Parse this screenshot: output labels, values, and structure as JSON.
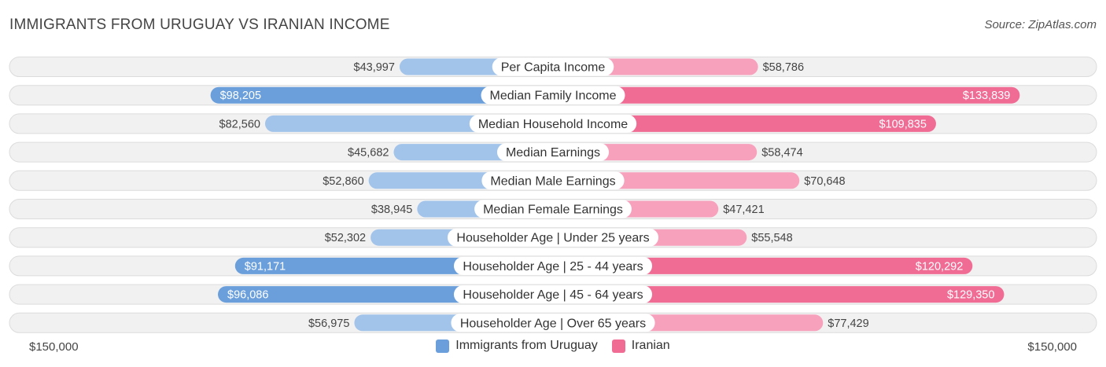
{
  "chart_data": {
    "type": "bar",
    "orientation": "horizontal-diverging",
    "title": "IMMIGRANTS FROM URUGUAY VS IRANIAN INCOME",
    "source": "Source: ZipAtlas.com",
    "categories": [
      "Per Capita Income",
      "Median Family Income",
      "Median Household Income",
      "Median Earnings",
      "Median Male Earnings",
      "Median Female Earnings",
      "Householder Age | Under 25 years",
      "Householder Age | 25 - 44 years",
      "Householder Age | 45 - 64 years",
      "Householder Age | Over 65 years"
    ],
    "series": [
      {
        "name": "Immigrants from Uruguay",
        "side": "left",
        "values": [
          43997,
          98205,
          82560,
          45682,
          52860,
          38945,
          52302,
          91171,
          96086,
          56975
        ],
        "labels": [
          "$43,997",
          "$98,205",
          "$82,560",
          "$45,682",
          "$52,860",
          "$38,945",
          "$52,302",
          "$91,171",
          "$96,086",
          "$56,975"
        ]
      },
      {
        "name": "Iranian",
        "side": "right",
        "values": [
          58786,
          133839,
          109835,
          58474,
          70648,
          47421,
          55548,
          120292,
          129350,
          77429
        ],
        "labels": [
          "$58,786",
          "$133,839",
          "$109,835",
          "$58,474",
          "$70,648",
          "$47,421",
          "$55,548",
          "$120,292",
          "$129,350",
          "$77,429"
        ]
      }
    ],
    "axis": {
      "max": 150000,
      "left_label": "$150,000",
      "right_label": "$150,000"
    },
    "colors": {
      "left_strong": "#6a9fdc",
      "left_light": "#a3c4ea",
      "right_strong": "#f06c95",
      "right_light": "#f7a1bd",
      "track": "#f1f1f1",
      "track_border": "#dcdcdc"
    },
    "legend": [
      {
        "name": "Immigrants from Uruguay",
        "color": "#6a9fdc"
      },
      {
        "name": "Iranian",
        "color": "#f06c95"
      }
    ],
    "legend_position": "bottom-center"
  }
}
